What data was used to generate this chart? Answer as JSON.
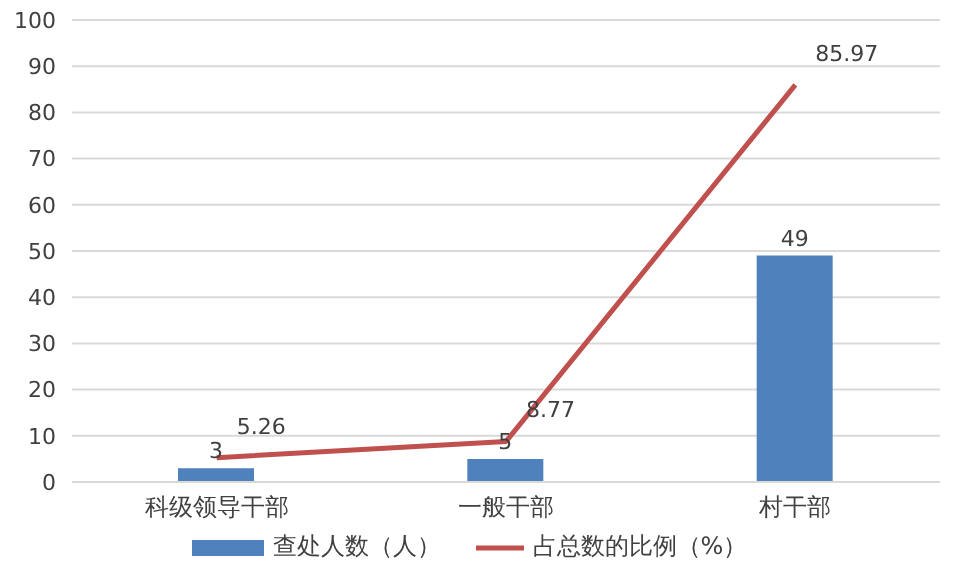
{
  "chart_data": {
    "type": "bar",
    "categories": [
      "科级领导干部",
      "一般干部",
      "村干部"
    ],
    "series": [
      {
        "name": "查处人数（人）",
        "color": "#4f81bd",
        "values": [
          3,
          5,
          49
        ]
      },
      {
        "name": "占总数的比例（%）",
        "type": "line",
        "color": "#c0504d",
        "values": [
          5.26,
          8.77,
          85.97
        ]
      }
    ],
    "ylim": [
      0,
      100
    ],
    "yticks": [
      0,
      10,
      20,
      30,
      40,
      50,
      60,
      70,
      80,
      90,
      100
    ],
    "grid": "y",
    "legend": "bottom",
    "data_labels": true,
    "marker": "none"
  }
}
